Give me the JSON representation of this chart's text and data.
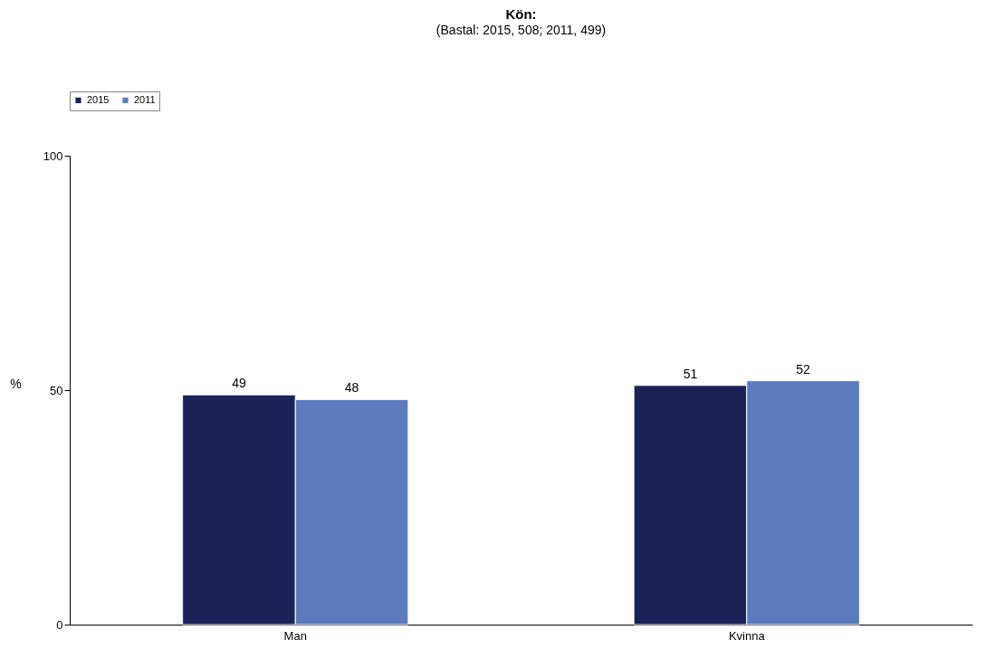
{
  "chart_data": {
    "type": "bar",
    "title": "Kön:",
    "subtitle": "(Bastal: 2015, 508; 2011, 499)",
    "ylabel": "%",
    "categories": [
      "Man",
      "Kvinna"
    ],
    "series": [
      {
        "name": "2015",
        "color": "#1a2258",
        "values": [
          49,
          51
        ]
      },
      {
        "name": "2011",
        "color": "#5b7bbd",
        "values": [
          48,
          52
        ]
      }
    ],
    "ylim": [
      0,
      100
    ],
    "yticks": [
      0,
      50,
      100
    ],
    "data_labels": true,
    "grid": false,
    "legend": "top"
  }
}
